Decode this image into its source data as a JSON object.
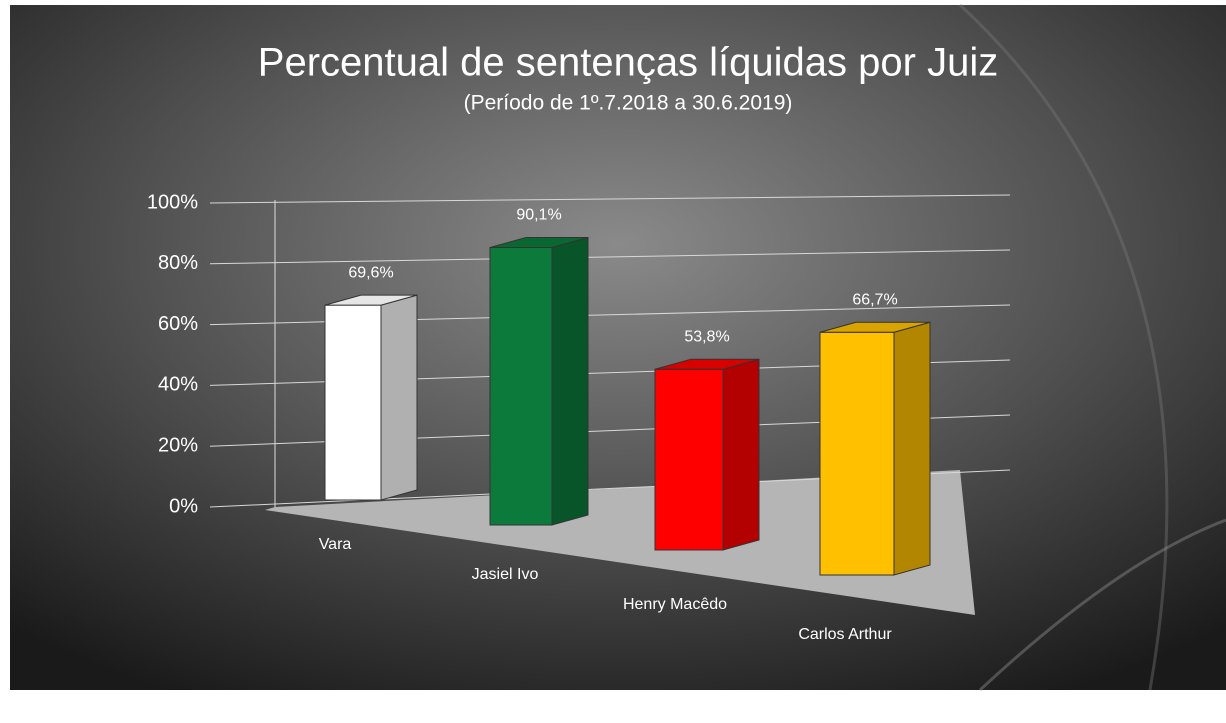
{
  "chart_data": {
    "type": "bar3d",
    "title": "Percentual de sentenças líquidas por Juiz",
    "subtitle": "(Período de 1º.7.2018  a 30.6.2019)",
    "categories": [
      "Vara",
      "Jasiel Ivo",
      "Henry Macêdo",
      "Carlos Arthur"
    ],
    "values": [
      69.6,
      90.1,
      53.8,
      66.7
    ],
    "value_labels": [
      "69,6%",
      "90,1%",
      "53,8%",
      "66,7%"
    ],
    "colors": [
      "#ffffff",
      "#0b7a3b",
      "#ff0000",
      "#ffc000"
    ],
    "ylim": [
      0,
      100
    ],
    "yticks": [
      {
        "value": 0,
        "label": "0%"
      },
      {
        "value": 20,
        "label": "20%"
      },
      {
        "value": 40,
        "label": "40%"
      },
      {
        "value": 60,
        "label": "60%"
      },
      {
        "value": 80,
        "label": "80%"
      },
      {
        "value": 100,
        "label": "100%"
      }
    ],
    "grid": true
  }
}
